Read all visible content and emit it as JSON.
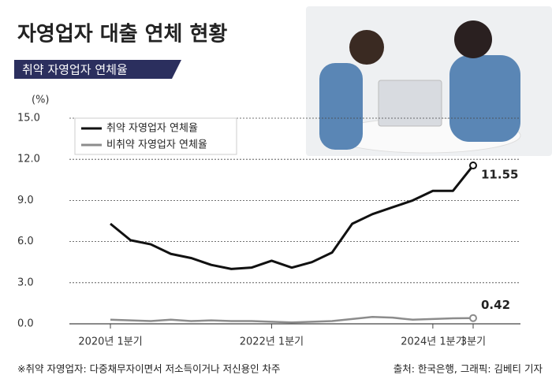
{
  "chart_data": {
    "type": "line",
    "title": "자영업자 대출 연체 현황",
    "subtitle": "취약 자영업자 연체율",
    "y_unit": "(%)",
    "categories": [
      "2020년 1분기",
      null,
      null,
      null,
      null,
      null,
      null,
      null,
      "2022년 1분기",
      null,
      null,
      null,
      null,
      null,
      null,
      null,
      "2024년 1분기",
      null,
      "3분기"
    ],
    "series": [
      {
        "name": "취약 자영업자 연체율",
        "color": "#111111",
        "values": [
          7.3,
          6.1,
          5.8,
          5.1,
          4.8,
          4.3,
          4.0,
          4.1,
          4.6,
          4.1,
          4.5,
          5.2,
          7.3,
          8.0,
          8.5,
          9.0,
          9.7,
          9.7,
          11.55
        ]
      },
      {
        "name": "비취약 자영업자 연체율",
        "color": "#8c8c8c",
        "values": [
          0.3,
          0.25,
          0.2,
          0.3,
          0.2,
          0.25,
          0.2,
          0.2,
          0.15,
          0.1,
          0.15,
          0.2,
          0.35,
          0.5,
          0.45,
          0.3,
          0.35,
          0.4,
          0.42
        ]
      }
    ],
    "ylim": [
      0,
      15
    ],
    "yticks": [
      {
        "value": 0,
        "label": "0.0"
      },
      {
        "value": 3,
        "label": "3.0"
      },
      {
        "value": 6,
        "label": "6.0"
      },
      {
        "value": 9,
        "label": "9.0"
      },
      {
        "value": 12,
        "label": "12.0"
      },
      {
        "value": 15,
        "label": "15.0"
      }
    ],
    "grid": true,
    "legend": "upper left",
    "footnote": "※취약 자영업자: 다중채무자이면서 저소득이거나 저신용인 차주",
    "source": "출처: 한국은행, 그래픽: 김베티 기자"
  }
}
